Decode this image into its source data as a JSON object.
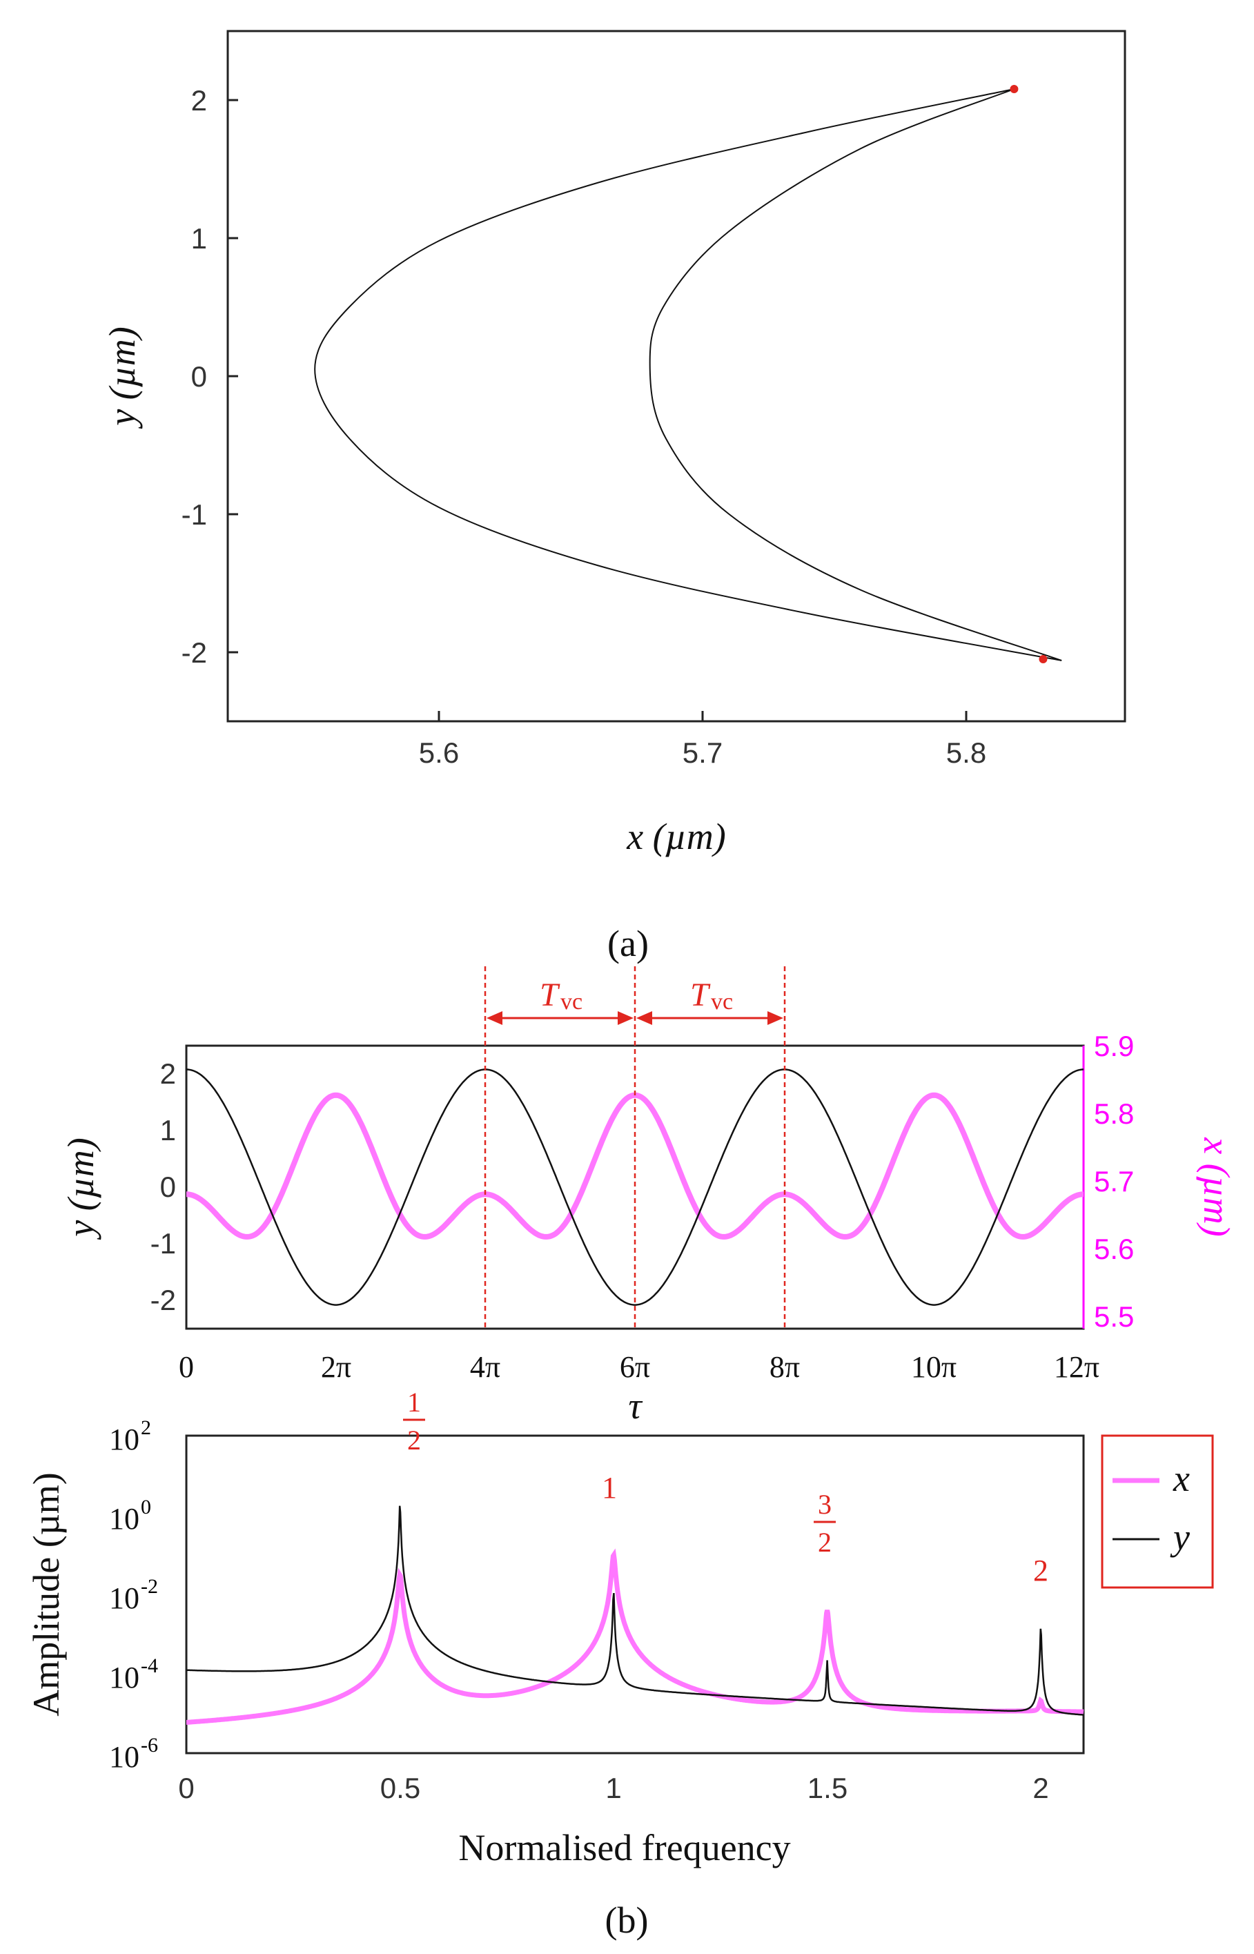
{
  "colors": {
    "x_series": "#ff77ff",
    "y_series": "#111111",
    "accent": "#e0261f",
    "magenta_axis": "#ff00ff"
  },
  "chart_data": [
    {
      "id": "a",
      "type": "line",
      "panel_label": "(a)",
      "xlabel": "x (µm)",
      "ylabel": "y (µm)",
      "xlim": [
        5.52,
        5.86
      ],
      "ylim": [
        -2.5,
        2.5
      ],
      "xticks": [
        5.6,
        5.7,
        5.8
      ],
      "xtick_labels": [
        "5.6",
        "5.7",
        "5.8"
      ],
      "yticks": [
        2,
        1,
        0,
        -1,
        -2
      ],
      "ytick_labels": [
        "2",
        "1",
        "0",
        "-1",
        "-2"
      ],
      "orbit": {
        "outer": [
          [
            5.818,
            2.08
          ],
          [
            5.74,
            1.77
          ],
          [
            5.66,
            1.4
          ],
          [
            5.6,
            0.98
          ],
          [
            5.566,
            0.5
          ],
          [
            5.553,
            0.05
          ],
          [
            5.566,
            -0.45
          ],
          [
            5.6,
            -0.95
          ],
          [
            5.66,
            -1.37
          ],
          [
            5.74,
            -1.72
          ],
          [
            5.836,
            -2.06
          ]
        ],
        "inner": [
          [
            5.818,
            2.08
          ],
          [
            5.76,
            1.65
          ],
          [
            5.71,
            1.05
          ],
          [
            5.685,
            0.5
          ],
          [
            5.68,
            0.05
          ],
          [
            5.686,
            -0.45
          ],
          [
            5.71,
            -1.0
          ],
          [
            5.76,
            -1.55
          ],
          [
            5.836,
            -2.06
          ]
        ]
      },
      "markers": [
        [
          5.818,
          2.08
        ],
        [
          5.829,
          -2.05
        ]
      ]
    },
    {
      "id": "b-time",
      "type": "line",
      "xlabel": "τ",
      "ylabel_left": "y (µm)",
      "ylabel_right": "x (µm)",
      "xlim_pi": [
        0,
        12
      ],
      "xticks_pi": [
        0,
        2,
        4,
        6,
        8,
        10,
        12
      ],
      "xtick_labels": [
        "0",
        "2π",
        "4π",
        "6π",
        "8π",
        "10π",
        "12π"
      ],
      "ylim_left": [
        -2.5,
        2.5
      ],
      "ytick_labels_left": [
        "2",
        "1",
        "0",
        "-1",
        "-2"
      ],
      "ylim_right": [
        5.5,
        5.9
      ],
      "ytick_labels_right": [
        "5.9",
        "5.8",
        "5.7",
        "5.6",
        "5.5"
      ],
      "series": [
        {
          "name": "y",
          "amplitude": 2.08,
          "period_pi": 4,
          "peak_tau_pi": 0,
          "color": "#111111"
        },
        {
          "name": "x",
          "mean": 5.7,
          "components": [
            [
              0.06,
              2
            ],
            [
              -0.07,
              4
            ]
          ],
          "color": "#ff77ff"
        }
      ],
      "vlines_pi": [
        4,
        6,
        8
      ],
      "annotations": [
        "T",
        "vc",
        "T",
        "vc"
      ]
    },
    {
      "id": "b-spectrum",
      "type": "line",
      "xlabel": "Normalised frequency",
      "ylabel": "Amplitude  (µm)",
      "yscale": "log",
      "xlim": [
        0,
        2.1
      ],
      "xtick_labels": [
        "0",
        "0.5",
        "1",
        "1.5",
        "2"
      ],
      "ylim_exp": [
        -6,
        2
      ],
      "ytick_labels": [
        "10",
        "10",
        "10",
        "10",
        "10"
      ],
      "ytick_exponents": [
        "2",
        "0",
        "-2",
        "-4",
        "-6"
      ],
      "peaks": [
        {
          "f": 0.5,
          "y_exp": 0.3,
          "x_exp": -1.5,
          "label_num": "1",
          "label_den": "2"
        },
        {
          "f": 1.0,
          "y_exp": -1.9,
          "x_exp": -1.0,
          "label": "1"
        },
        {
          "f": 1.5,
          "y_exp": -3.7,
          "x_exp": -2.4,
          "label_num": "3",
          "label_den": "2"
        },
        {
          "f": 2.0,
          "y_exp": -2.8,
          "x_exp": -5.0,
          "label": "2"
        }
      ],
      "legend": [
        {
          "name": "x",
          "color": "#ff77ff"
        },
        {
          "name": "y",
          "color": "#111111"
        }
      ],
      "legend_position": "right"
    }
  ],
  "panel_b_label": "(b)"
}
